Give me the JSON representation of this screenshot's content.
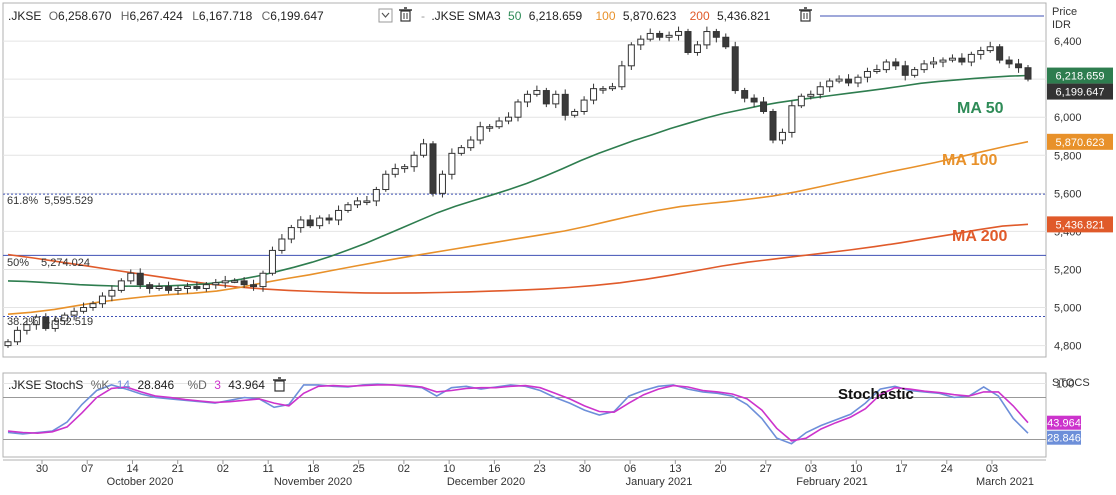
{
  "chart_data": {
    "type": "candlestick",
    "title": ".JKSE",
    "header": {
      "symbol": ".JKSE",
      "open_label": "O",
      "open": "6,258.670",
      "high_label": "H",
      "high": "6,267.424",
      "low_label": "L",
      "low": "6,167.718",
      "close_label": "C",
      "close": "6,199.647",
      "sma_label": ".JKSE SMA3",
      "sma50_period": "50",
      "sma50_value": "6,218.659",
      "sma100_period": "100",
      "sma100_value": "5,870.623",
      "sma200_period": "200",
      "sma200_value": "5,436.821"
    },
    "axis_title": "Price",
    "currency": "IDR",
    "ylim": [
      4740,
      6600
    ],
    "y_ticks": [
      "6,400",
      "6,200",
      "6,000",
      "5,800",
      "5,600",
      "5,400",
      "5,200",
      "5,000",
      "4,800"
    ],
    "y_tick_values": [
      6400,
      6200,
      6000,
      5800,
      5600,
      5400,
      5200,
      5000,
      4800
    ],
    "fib_levels": [
      {
        "label": "61.8%",
        "value_text": "5,595.529",
        "value": 5595.529,
        "style": "dotted"
      },
      {
        "label": "50%",
        "value_text": "5,274.024",
        "value": 5274.024,
        "style": "solid"
      },
      {
        "label": "38.2%",
        "value_text": "4,952.519",
        "value": 4952.519,
        "style": "dotted"
      }
    ],
    "price_badges": [
      {
        "text": "6,218.659",
        "value": 6218.659,
        "color": "#2e7d4f"
      },
      {
        "text": "6,199.647",
        "value": 6199.647,
        "color": "#333333"
      },
      {
        "text": "5,870.623",
        "value": 5870.623,
        "color": "#e8912a"
      },
      {
        "text": "5,436.821",
        "value": 5436.821,
        "color": "#e05a2a"
      }
    ],
    "annotations": [
      {
        "text": "MA 50",
        "color": "#2e8b57"
      },
      {
        "text": "MA 100",
        "color": "#e8912a"
      },
      {
        "text": "MA 200",
        "color": "#e05a2a"
      }
    ],
    "closes": [
      4820,
      4880,
      4910,
      4950,
      4890,
      4930,
      4960,
      4980,
      5000,
      5020,
      5060,
      5090,
      5140,
      5180,
      5120,
      5100,
      5110,
      5090,
      5100,
      5110,
      5100,
      5120,
      5130,
      5140,
      5140,
      5120,
      5110,
      5180,
      5300,
      5360,
      5420,
      5460,
      5430,
      5470,
      5460,
      5510,
      5540,
      5560,
      5560,
      5620,
      5700,
      5730,
      5740,
      5800,
      5860,
      5600,
      5700,
      5810,
      5840,
      5880,
      5950,
      5950,
      5980,
      6000,
      6080,
      6120,
      6140,
      6070,
      6120,
      6010,
      6030,
      6090,
      6150,
      6150,
      6160,
      6270,
      6380,
      6410,
      6440,
      6420,
      6430,
      6450,
      6340,
      6380,
      6450,
      6420,
      6370,
      6140,
      6100,
      6080,
      6030,
      5880,
      5920,
      6060,
      6110,
      6120,
      6160,
      6190,
      6200,
      6180,
      6210,
      6240,
      6250,
      6290,
      6270,
      6220,
      6250,
      6280,
      6290,
      6300,
      6310,
      6290,
      6330,
      6350,
      6370,
      6300,
      6280,
      6260,
      6200
    ],
    "ma50": [
      5140,
      5137,
      5132,
      5126,
      5120,
      5116,
      5113,
      5112,
      5112,
      5114,
      5118,
      5124,
      5134,
      5148,
      5166,
      5188,
      5212,
      5238,
      5268,
      5302,
      5338,
      5378,
      5418,
      5458,
      5498,
      5532,
      5562,
      5590,
      5620,
      5652,
      5690,
      5730,
      5772,
      5810,
      5844,
      5878,
      5908,
      5940,
      5968,
      5996,
      6020,
      6040,
      6060,
      6076,
      6090,
      6102,
      6114,
      6126,
      6138,
      6150,
      6164,
      6178,
      6188,
      6196,
      6204,
      6210,
      6216,
      6219
    ],
    "ma100": [
      4965,
      4975,
      4990,
      5010,
      5030,
      5045,
      5058,
      5068,
      5075,
      5086,
      5105,
      5130,
      5152,
      5172,
      5195,
      5218,
      5240,
      5262,
      5282,
      5302,
      5322,
      5342,
      5362,
      5382,
      5402,
      5428,
      5456,
      5484,
      5510,
      5530,
      5544,
      5556,
      5570,
      5586,
      5608,
      5634,
      5660,
      5686,
      5712,
      5736,
      5762,
      5790,
      5818,
      5846,
      5871
    ],
    "ma200": [
      5278,
      5260,
      5240,
      5220,
      5200,
      5180,
      5160,
      5140,
      5122,
      5108,
      5098,
      5090,
      5084,
      5080,
      5077,
      5076,
      5077,
      5079,
      5082,
      5086,
      5091,
      5097,
      5105,
      5116,
      5130,
      5148,
      5170,
      5194,
      5218,
      5238,
      5254,
      5270,
      5286,
      5302,
      5320,
      5340,
      5362,
      5384,
      5408,
      5428,
      5437
    ],
    "stochastic": {
      "header": ".JKSE StochS",
      "k_label": "%K",
      "k_period": "14",
      "k_value": "28.846",
      "d_label": "%D",
      "d_period": "3",
      "d_value": "43.964",
      "annotation": "Stochastic",
      "axis_title": "STOCS",
      "ylim": [
        -5,
        115
      ],
      "y_tick": "100",
      "y_tick_value": 100,
      "ref_lines": [
        80,
        20
      ],
      "k_color": "#6d8fd9",
      "d_color": "#cc33cc",
      "k_series": [
        30,
        28,
        30,
        32,
        45,
        70,
        90,
        98,
        92,
        85,
        80,
        78,
        76,
        74,
        72,
        76,
        80,
        78,
        66,
        70,
        98,
        98,
        96,
        95,
        98,
        99,
        98,
        96,
        94,
        82,
        94,
        96,
        92,
        95,
        98,
        96,
        90,
        80,
        72,
        62,
        55,
        60,
        82,
        90,
        96,
        98,
        92,
        88,
        86,
        82,
        70,
        50,
        22,
        14,
        30,
        40,
        48,
        56,
        72,
        92,
        96,
        90,
        88,
        86,
        80,
        82,
        95,
        82,
        50,
        29
      ],
      "d_series": [
        32,
        30,
        29,
        31,
        38,
        58,
        80,
        93,
        95,
        88,
        82,
        80,
        77,
        75,
        73,
        74,
        76,
        78,
        72,
        68,
        86,
        96,
        97,
        96,
        97,
        98,
        98,
        97,
        95,
        88,
        90,
        93,
        94,
        94,
        96,
        97,
        94,
        86,
        78,
        68,
        60,
        59,
        72,
        84,
        92,
        97,
        95,
        90,
        88,
        85,
        78,
        62,
        36,
        18,
        22,
        35,
        44,
        52,
        64,
        84,
        94,
        92,
        89,
        87,
        84,
        82,
        88,
        88,
        68,
        44
      ]
    },
    "x_ticks": [
      "30",
      "07",
      "14",
      "21",
      "02",
      "11",
      "18",
      "25",
      "02",
      "10",
      "16",
      "23",
      "30",
      "06",
      "13",
      "20",
      "27",
      "03",
      "10",
      "17",
      "24",
      "03"
    ],
    "x_months": [
      "October 2020",
      "November 2020",
      "December 2020",
      "January 2021",
      "February 2021",
      "March 2021"
    ]
  },
  "colors": {
    "up_candle": "#ffffff",
    "down_candle": "#3a3a3a",
    "ma50": "#2e7d4f",
    "ma100": "#e8912a",
    "ma200": "#e05a2a",
    "fib_line": "#3f51b5"
  }
}
